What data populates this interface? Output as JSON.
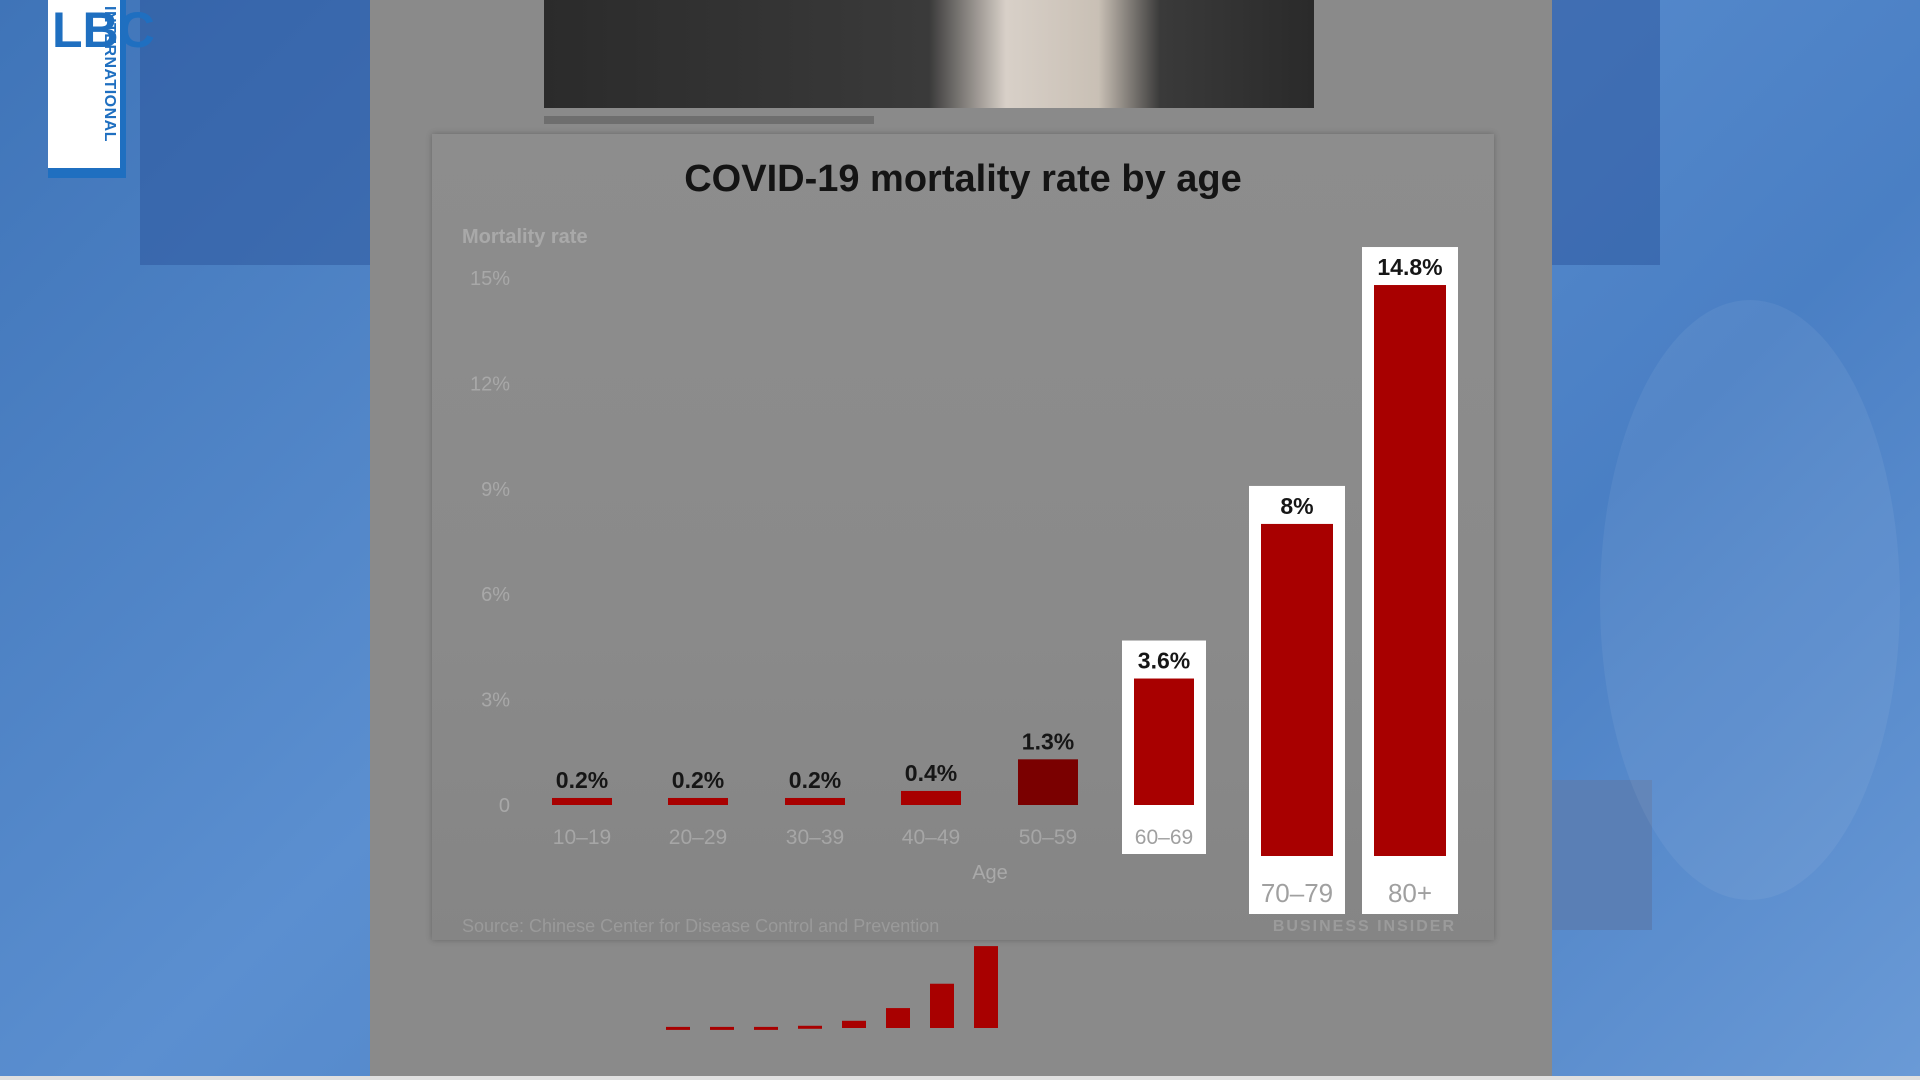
{
  "broadcaster": {
    "logo_letters": "LBC",
    "logo_sub": "INTERNATIONAL"
  },
  "chart_data": {
    "type": "bar",
    "title": "COVID-19 mortality rate by age",
    "ylabel": "Mortality rate",
    "xlabel": "Age",
    "categories": [
      "10–19",
      "20–29",
      "30–39",
      "40–49",
      "50–59",
      "60–69",
      "70–79",
      "80+"
    ],
    "values": [
      0.2,
      0.2,
      0.2,
      0.4,
      1.3,
      3.6,
      8,
      14.8
    ],
    "value_labels": [
      "0.2%",
      "0.2%",
      "0.2%",
      "0.4%",
      "1.3%",
      "3.6%",
      "8%",
      "14.8%"
    ],
    "y_ticks": [
      0,
      3,
      6,
      9,
      12,
      15
    ],
    "y_tick_labels": [
      "0",
      "3%",
      "6%",
      "9%",
      "12%",
      "15%"
    ],
    "ylim": [
      0,
      15
    ],
    "highlighted_categories": [
      "60–69",
      "70–79",
      "80+"
    ],
    "bar_color": "#a80000",
    "bar_color_dark": "#7a0000",
    "grid": false,
    "source": "Source: Chinese Center for Disease Control and Prevention",
    "brand": "BUSINESS INSIDER"
  }
}
